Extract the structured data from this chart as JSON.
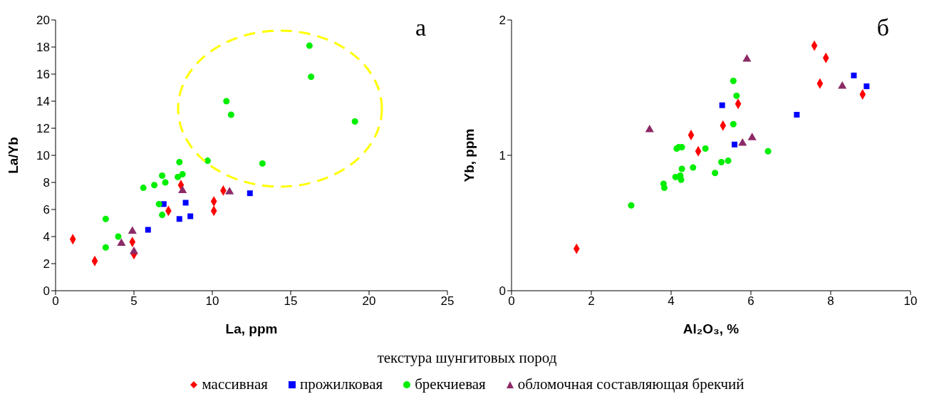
{
  "chart_data": [
    {
      "type": "scatter",
      "xlabel": "La, ppm",
      "ylabel": "La/Yb",
      "annotations": [
        "а"
      ],
      "xlim": [
        0,
        25
      ],
      "xticks": [
        0,
        5,
        10,
        15,
        20,
        25
      ],
      "ylim": [
        0,
        20
      ],
      "yticks": [
        0,
        2,
        4,
        6,
        8,
        10,
        12,
        14,
        16,
        18,
        20
      ],
      "grid": false,
      "legend": "bottom",
      "legend_title": "текстура шунгитовых пород",
      "series": [
        {
          "name": "массивная",
          "color": "#ff0000",
          "marker": "diamond",
          "x": [
            1.1,
            2.5,
            4.9,
            5.0,
            7.2,
            8.0,
            10.1,
            10.1,
            10.7
          ],
          "values": [
            3.8,
            2.2,
            3.6,
            2.7,
            5.9,
            7.8,
            6.6,
            5.9,
            7.4
          ]
        },
        {
          "name": "прожилковая",
          "color": "#0000ff",
          "marker": "square",
          "x": [
            5.9,
            6.9,
            7.9,
            8.3,
            8.6,
            12.4
          ],
          "values": [
            4.5,
            6.4,
            5.3,
            6.5,
            5.5,
            7.2
          ]
        },
        {
          "name": "брекчиевая",
          "color": "#00ee00",
          "marker": "circle",
          "x": [
            3.2,
            3.2,
            4.0,
            5.6,
            6.3,
            6.6,
            6.8,
            6.8,
            7.0,
            7.8,
            7.9,
            8.1,
            9.7,
            10.9,
            11.2,
            13.2,
            16.2,
            16.3,
            19.1
          ],
          "values": [
            5.3,
            3.2,
            4.0,
            7.6,
            7.8,
            6.4,
            5.6,
            8.5,
            8.0,
            8.4,
            9.5,
            8.6,
            9.6,
            14.0,
            13.0,
            9.4,
            18.1,
            15.8,
            12.5
          ]
        },
        {
          "name": "обломочная составляющая брекчий",
          "color": "#8c2a66",
          "marker": "triangle",
          "x": [
            4.2,
            4.9,
            5.0,
            8.1,
            11.1
          ],
          "values": [
            3.5,
            4.4,
            2.9,
            7.4,
            7.3
          ]
        }
      ]
    },
    {
      "type": "scatter",
      "xlabel": "Al₂O₃, %",
      "ylabel": "Yb, ppm",
      "annotations": [
        "б"
      ],
      "xlim": [
        0,
        10
      ],
      "xticks": [
        0,
        2,
        4,
        6,
        8,
        10
      ],
      "ylim": [
        0,
        2
      ],
      "yticks": [
        0,
        1,
        2
      ],
      "grid": false,
      "series": [
        {
          "color": "#ff0000",
          "marker": "diamond",
          "x": [
            1.63,
            4.5,
            4.68,
            5.3,
            5.68,
            7.59,
            7.88,
            7.73,
            8.8
          ],
          "values": [
            0.31,
            1.15,
            1.03,
            1.22,
            1.38,
            1.81,
            1.72,
            1.53,
            1.45
          ]
        },
        {
          "color": "#0000ff",
          "marker": "square",
          "x": [
            5.28,
            5.59,
            7.15,
            8.58,
            8.9
          ],
          "values": [
            1.37,
            1.08,
            1.3,
            1.59,
            1.51
          ]
        },
        {
          "color": "#00ee00",
          "marker": "circle",
          "x": [
            3.0,
            3.81,
            3.83,
            4.11,
            4.14,
            4.19,
            4.27,
            4.23,
            4.25,
            4.27,
            4.55,
            4.86,
            5.1,
            5.26,
            5.43,
            5.56,
            5.64,
            5.56,
            6.43
          ],
          "values": [
            0.63,
            0.79,
            0.76,
            0.84,
            1.05,
            1.06,
            1.06,
            0.85,
            0.82,
            0.9,
            0.91,
            1.05,
            0.87,
            0.95,
            0.96,
            1.55,
            1.44,
            1.23,
            1.03
          ]
        },
        {
          "color": "#8c2a66",
          "marker": "triangle",
          "x": [
            3.46,
            5.9,
            5.79,
            6.03,
            8.29
          ],
          "values": [
            1.19,
            1.71,
            1.09,
            1.13,
            1.51
          ]
        }
      ]
    }
  ]
}
